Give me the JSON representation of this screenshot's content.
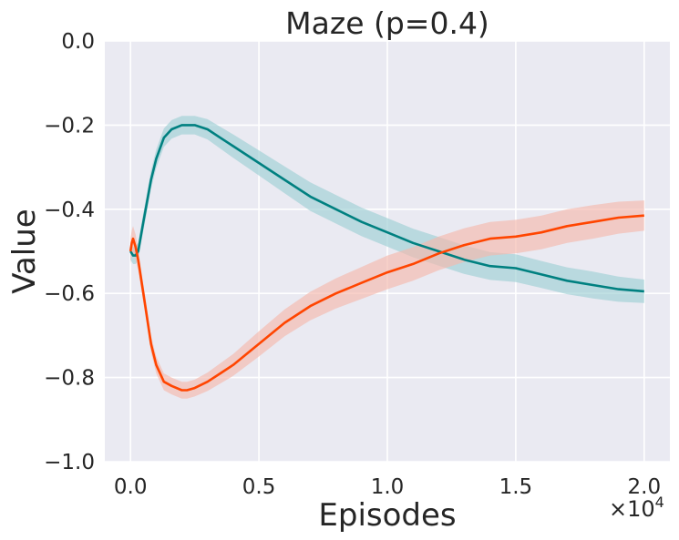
{
  "chart_data": {
    "type": "line",
    "title": "Maze (p=0.4)",
    "xlabel": "Episodes",
    "ylabel": "Value",
    "x_offset_label": "×10",
    "x_offset_exponent": "4",
    "xlim": [
      -0.1,
      2.1
    ],
    "ylim": [
      -1.0,
      0.0
    ],
    "x_ticks": [
      0.0,
      0.5,
      1.0,
      1.5,
      2.0
    ],
    "x_tick_labels": [
      "0.0",
      "0.5",
      "1.0",
      "1.5",
      "2.0"
    ],
    "y_ticks": [
      0.0,
      -0.2,
      -0.4,
      -0.6,
      -0.8,
      -1.0
    ],
    "y_tick_labels": [
      "0.0",
      "−0.2",
      "−0.4",
      "−0.6",
      "−0.8",
      "−1.0"
    ],
    "grid": true,
    "background": "#eaeaf2",
    "series": [
      {
        "color": "#008080",
        "band_color": "#9ecfd4",
        "x": [
          0.0,
          0.01,
          0.02,
          0.03,
          0.05,
          0.08,
          0.1,
          0.13,
          0.16,
          0.2,
          0.22,
          0.25,
          0.3,
          0.35,
          0.4,
          0.5,
          0.6,
          0.7,
          0.8,
          0.9,
          1.0,
          1.1,
          1.2,
          1.3,
          1.4,
          1.5,
          1.6,
          1.7,
          1.8,
          1.9,
          2.0
        ],
        "values": [
          -0.5,
          -0.51,
          -0.51,
          -0.5,
          -0.43,
          -0.33,
          -0.28,
          -0.23,
          -0.21,
          -0.2,
          -0.2,
          -0.2,
          -0.21,
          -0.23,
          -0.25,
          -0.29,
          -0.33,
          -0.37,
          -0.4,
          -0.43,
          -0.455,
          -0.48,
          -0.5,
          -0.52,
          -0.535,
          -0.54,
          -0.555,
          -0.57,
          -0.58,
          -0.59,
          -0.595
        ],
        "band": [
          0.02,
          0.02,
          0.02,
          0.02,
          0.022,
          0.022,
          0.022,
          0.022,
          0.022,
          0.022,
          0.022,
          0.022,
          0.024,
          0.026,
          0.028,
          0.03,
          0.032,
          0.034,
          0.034,
          0.034,
          0.034,
          0.034,
          0.034,
          0.034,
          0.033,
          0.033,
          0.032,
          0.032,
          0.032,
          0.03,
          0.028
        ]
      },
      {
        "color": "#ff4500",
        "band_color": "#f4b9ac",
        "x": [
          0.0,
          0.005,
          0.01,
          0.02,
          0.03,
          0.05,
          0.08,
          0.1,
          0.13,
          0.16,
          0.2,
          0.22,
          0.25,
          0.3,
          0.35,
          0.4,
          0.5,
          0.6,
          0.7,
          0.8,
          0.9,
          1.0,
          1.1,
          1.2,
          1.3,
          1.4,
          1.5,
          1.6,
          1.7,
          1.8,
          1.9,
          2.0
        ],
        "values": [
          -0.5,
          -0.48,
          -0.47,
          -0.49,
          -0.52,
          -0.6,
          -0.72,
          -0.77,
          -0.81,
          -0.82,
          -0.83,
          -0.83,
          -0.825,
          -0.81,
          -0.79,
          -0.77,
          -0.72,
          -0.67,
          -0.63,
          -0.6,
          -0.575,
          -0.55,
          -0.53,
          -0.505,
          -0.485,
          -0.47,
          -0.465,
          -0.455,
          -0.44,
          -0.43,
          -0.42,
          -0.415
        ],
        "band": [
          0.03,
          0.03,
          0.03,
          0.03,
          0.025,
          0.022,
          0.02,
          0.02,
          0.02,
          0.02,
          0.02,
          0.02,
          0.02,
          0.022,
          0.024,
          0.026,
          0.03,
          0.032,
          0.034,
          0.036,
          0.038,
          0.04,
          0.04,
          0.04,
          0.04,
          0.04,
          0.04,
          0.04,
          0.04,
          0.04,
          0.038,
          0.036
        ]
      }
    ]
  }
}
